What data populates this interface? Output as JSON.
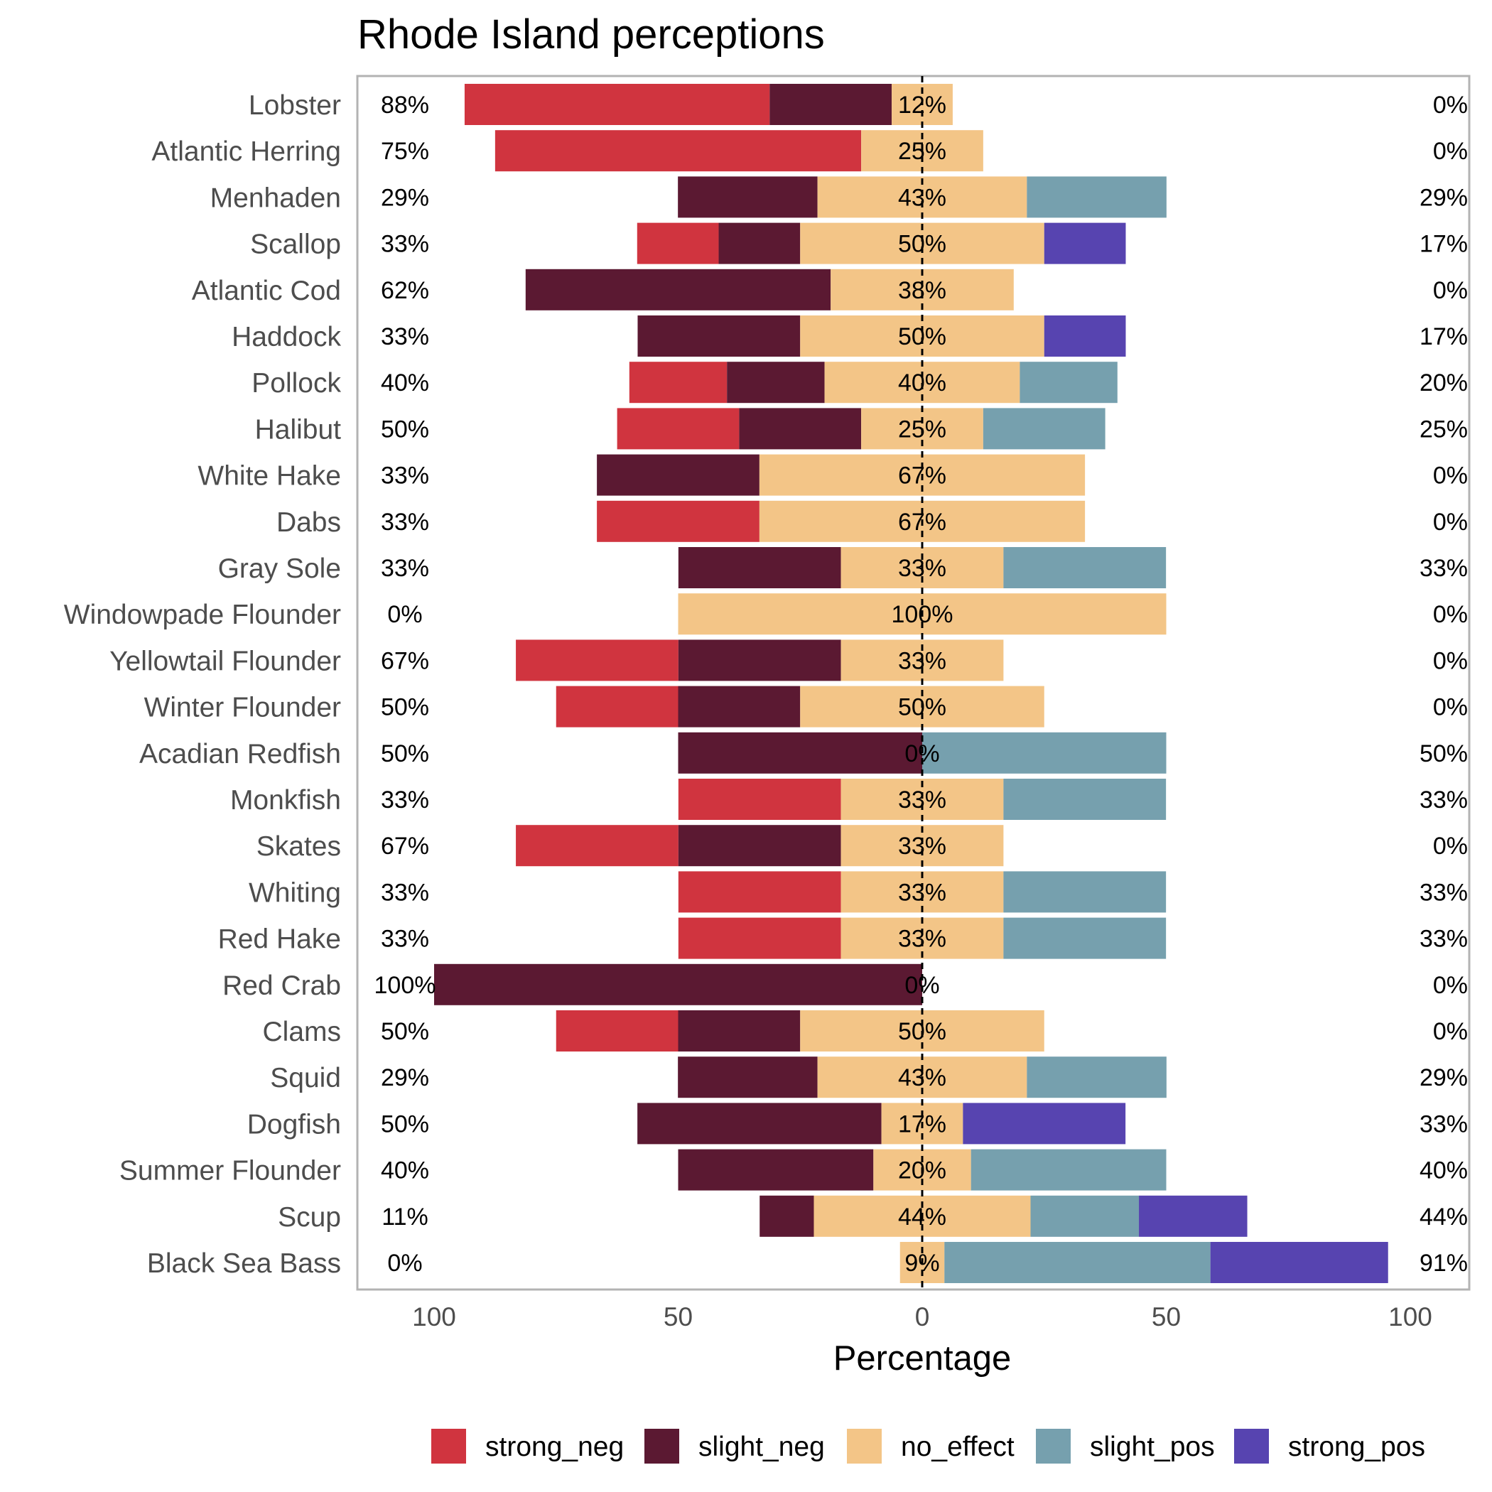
{
  "chart_data": {
    "type": "bar",
    "orientation": "horizontal-diverging",
    "title": "Rhode Island perceptions",
    "xlabel": "Percentage",
    "ylabel": "",
    "xlim": [
      -100,
      100
    ],
    "xticks": [
      {
        "value": -100,
        "label": "100"
      },
      {
        "value": -50,
        "label": "50"
      },
      {
        "value": 0,
        "label": "0"
      },
      {
        "value": 50,
        "label": "50"
      },
      {
        "value": 100,
        "label": "100"
      }
    ],
    "grid": false,
    "legend_position": "bottom",
    "center_line": "dashed at 0",
    "categories": [
      "Lobster",
      "Atlantic Herring",
      "Menhaden",
      "Scallop",
      "Atlantic Cod",
      "Haddock",
      "Pollock",
      "Halibut",
      "White Hake",
      "Dabs",
      "Gray Sole",
      "Windowpade Flounder",
      "Yellowtail Flounder",
      "Winter Flounder",
      "Acadian Redfish",
      "Monkfish",
      "Skates",
      "Whiting",
      "Red Hake",
      "Red Crab",
      "Clams",
      "Squid",
      "Dogfish",
      "Summer Flounder",
      "Scup",
      "Black Sea Bass"
    ],
    "series": [
      {
        "name": "strong_neg",
        "color": "#d0343f",
        "values": [
          62.5,
          75,
          0,
          16.7,
          0,
          0,
          20,
          25,
          0,
          33.3,
          0,
          0,
          33.3,
          25,
          0,
          33.3,
          33.3,
          33.3,
          33.3,
          0,
          25,
          0,
          0,
          0,
          0,
          0
        ]
      },
      {
        "name": "slight_neg",
        "color": "#5b1932",
        "values": [
          25,
          0,
          28.6,
          16.7,
          62.5,
          33.3,
          20,
          25,
          33.3,
          0,
          33.3,
          0,
          33.3,
          25,
          50,
          0,
          33.3,
          0,
          0,
          100,
          25,
          28.6,
          50,
          40,
          11.1,
          0
        ]
      },
      {
        "name": "no_effect",
        "color": "#f3c587",
        "values": [
          12.5,
          25,
          42.9,
          50,
          37.5,
          50,
          40,
          25,
          66.7,
          66.7,
          33.3,
          100,
          33.3,
          50,
          0,
          33.3,
          33.3,
          33.3,
          33.3,
          0,
          50,
          42.9,
          16.7,
          20,
          44.4,
          9.1
        ]
      },
      {
        "name": "slight_pos",
        "color": "#76a0ae",
        "values": [
          0,
          0,
          28.6,
          0,
          0,
          0,
          20,
          25,
          0,
          0,
          33.3,
          0,
          0,
          0,
          50,
          33.3,
          0,
          33.3,
          33.3,
          0,
          0,
          28.6,
          0,
          40,
          22.2,
          54.5
        ]
      },
      {
        "name": "strong_pos",
        "color": "#5744b0",
        "values": [
          0,
          0,
          0,
          16.7,
          0,
          16.7,
          0,
          0,
          0,
          0,
          0,
          0,
          0,
          0,
          0,
          0,
          0,
          0,
          0,
          0,
          0,
          0,
          33.3,
          0,
          22.2,
          36.4
        ]
      }
    ],
    "left_labels": [
      "88%",
      "75%",
      "29%",
      "33%",
      "62%",
      "33%",
      "40%",
      "50%",
      "33%",
      "33%",
      "33%",
      "0%",
      "67%",
      "50%",
      "50%",
      "33%",
      "67%",
      "33%",
      "33%",
      "100%",
      "50%",
      "29%",
      "50%",
      "40%",
      "11%",
      "0%"
    ],
    "center_labels": [
      "12%",
      "25%",
      "43%",
      "50%",
      "38%",
      "50%",
      "40%",
      "25%",
      "67%",
      "67%",
      "33%",
      "100%",
      "33%",
      "50%",
      "0%",
      "33%",
      "33%",
      "33%",
      "33%",
      "0%",
      "50%",
      "43%",
      "17%",
      "20%",
      "44%",
      "9%"
    ],
    "right_labels": [
      "0%",
      "0%",
      "29%",
      "17%",
      "0%",
      "17%",
      "20%",
      "25%",
      "0%",
      "0%",
      "33%",
      "0%",
      "0%",
      "0%",
      "50%",
      "33%",
      "0%",
      "33%",
      "33%",
      "0%",
      "0%",
      "29%",
      "33%",
      "40%",
      "44%",
      "91%"
    ]
  }
}
